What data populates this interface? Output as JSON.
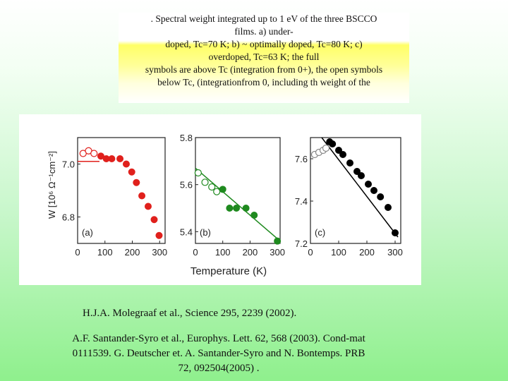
{
  "caption": {
    "lines": [
      ". Spectral weight integrated up to 1 eV of the three BSCCO",
      "films. a) under-",
      "doped, Tc=70 K; b) ~ optimally doped, Tc=80 K; c)",
      "overdoped, Tc=63 K; the full",
      "symbols are above Tc (integration from 0+), the open symbols",
      "below Tc, (integrationfrom 0, including th weight of the"
    ]
  },
  "chart_data": [
    {
      "type": "scatter",
      "panel_label": "(a)",
      "ylabel": "W [10⁶ Ω⁻¹cm⁻²]",
      "xlabel": "Temperature (K)",
      "xlim": [
        0,
        320
      ],
      "ylim": [
        6.7,
        7.1
      ],
      "xticks": [
        "0",
        "100",
        "200",
        "300"
      ],
      "yticks": [
        "7.0",
        "6.8"
      ],
      "color": "#e0201c",
      "series": [
        {
          "name": "below Tc (open)",
          "x": [
            20,
            40,
            60
          ],
          "y": [
            7.04,
            7.05,
            7.04
          ]
        },
        {
          "name": "above Tc (full)",
          "x": [
            85,
            105,
            125,
            155,
            178,
            198,
            215,
            235,
            258,
            280,
            298
          ],
          "y": [
            7.03,
            7.02,
            7.02,
            7.02,
            7.0,
            6.97,
            6.93,
            6.88,
            6.84,
            6.79,
            6.73
          ]
        }
      ],
      "fit_line": {
        "x": [
          0,
          80
        ],
        "y": [
          7.01,
          7.01
        ]
      }
    },
    {
      "type": "scatter",
      "panel_label": "(b)",
      "xlabel": "Temperature (K)",
      "xlim": [
        0,
        310
      ],
      "ylim": [
        5.35,
        5.8
      ],
      "xticks": [
        "0",
        "100",
        "200",
        "300"
      ],
      "yticks": [
        "5.8",
        "5.6",
        "5.4"
      ],
      "color": "#1f8a1f",
      "series": [
        {
          "name": "below Tc (open)",
          "x": [
            10,
            35,
            60,
            78
          ],
          "y": [
            5.65,
            5.61,
            5.59,
            5.57
          ]
        },
        {
          "name": "above Tc (full)",
          "x": [
            100,
            125,
            150,
            185,
            215,
            300
          ],
          "y": [
            5.58,
            5.5,
            5.5,
            5.5,
            5.47,
            5.36
          ]
        }
      ],
      "fit_line": {
        "x": [
          0,
          300
        ],
        "y": [
          5.67,
          5.37
        ]
      }
    },
    {
      "type": "scatter",
      "panel_label": "(c)",
      "xlabel": "Temperature (K)",
      "xlim": [
        0,
        320
      ],
      "ylim": [
        7.2,
        7.7
      ],
      "xticks": [
        "0",
        "100",
        "200",
        "300"
      ],
      "yticks": [
        "7.6",
        "7.4",
        "7.2"
      ],
      "color": "#000000",
      "series": [
        {
          "name": "below Tc (open)",
          "x": [
            15,
            30,
            45,
            55
          ],
          "y": [
            7.62,
            7.63,
            7.64,
            7.65
          ]
        },
        {
          "name": "above Tc (full)",
          "x": [
            68,
            78,
            100,
            115,
            140,
            165,
            180,
            205,
            225,
            248,
            275,
            300
          ],
          "y": [
            7.68,
            7.67,
            7.64,
            7.62,
            7.58,
            7.54,
            7.52,
            7.48,
            7.45,
            7.42,
            7.37,
            7.25
          ]
        }
      ],
      "fit_line": {
        "x": [
          40,
          310
        ],
        "y": [
          7.7,
          7.23
        ]
      }
    }
  ],
  "references": {
    "ref1": "H.J.A. Molegraaf et al., Science 295, 2239 (2002).",
    "ref2_lines": [
      "A.F. Santander-Syro et al., Europhys. Lett. 62, 568 (2003). Cond-mat",
      "0111539. G. Deutscher et. A. Santander-Syro and N. Bontemps. PRB",
      "72, 092504(2005) ."
    ]
  }
}
